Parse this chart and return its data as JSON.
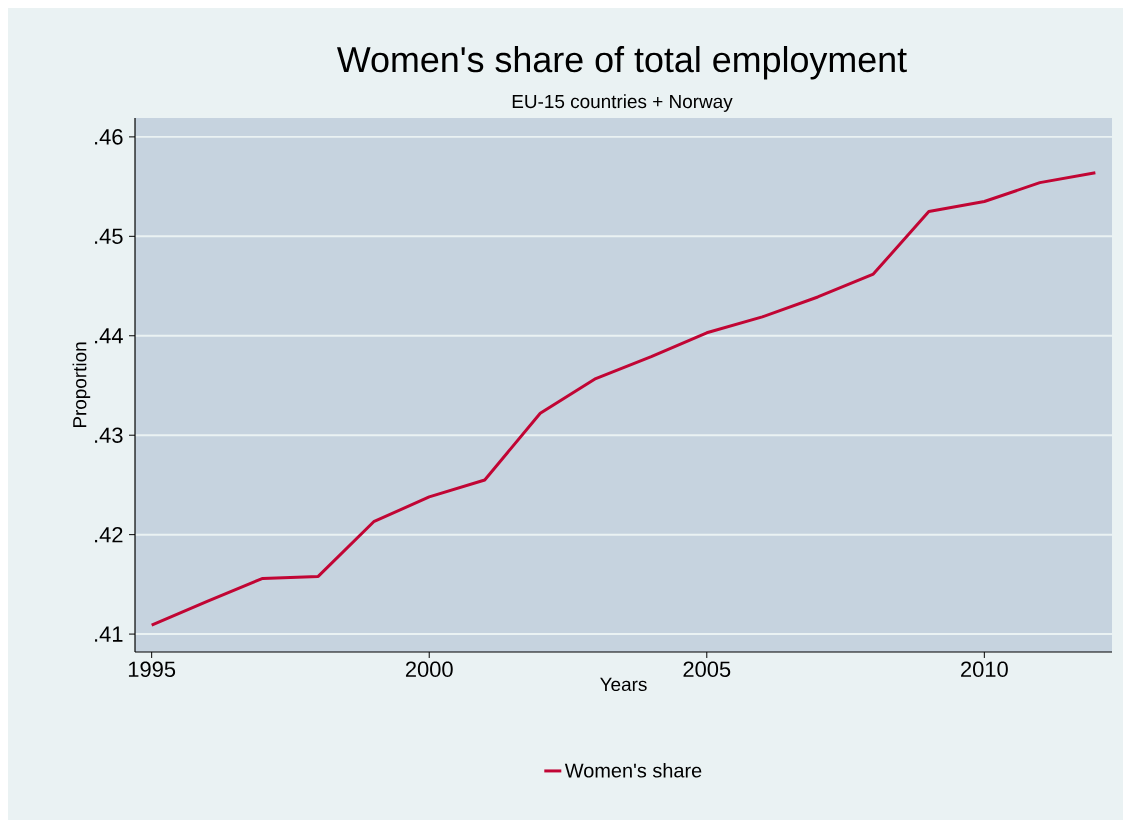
{
  "chart_data": {
    "type": "line",
    "title": "Women's share of total employment",
    "subtitle": "EU-15 countries + Norway",
    "xlabel": "Years",
    "ylabel": "Proportion",
    "x": [
      1995,
      1996,
      1997,
      1998,
      1999,
      2000,
      2001,
      2002,
      2003,
      2004,
      2005,
      2006,
      2007,
      2008,
      2009,
      2010,
      2011,
      2012
    ],
    "series": [
      {
        "name": "Women's share",
        "color": "#c10534",
        "values": [
          0.4109,
          0.4133,
          0.4156,
          0.4158,
          0.4213,
          0.4238,
          0.4255,
          0.4322,
          0.4357,
          0.4379,
          0.4403,
          0.4419,
          0.4439,
          0.4462,
          0.4525,
          0.4535,
          0.4554,
          0.4564
        ]
      }
    ],
    "xlim": [
      1994.7,
      2012.3
    ],
    "ylim": [
      0.4082,
      0.4619
    ],
    "xticks": [
      1995,
      2000,
      2005,
      2010
    ],
    "yticks": [
      {
        "value": 0.41,
        "label": ".41"
      },
      {
        "value": 0.42,
        "label": ".42"
      },
      {
        "value": 0.43,
        "label": ".43"
      },
      {
        "value": 0.44,
        "label": ".44"
      },
      {
        "value": 0.45,
        "label": ".45"
      },
      {
        "value": 0.46,
        "label": ".46"
      }
    ],
    "grid": "y",
    "legend": "bottom",
    "marker": "none",
    "line_style": "solid"
  }
}
